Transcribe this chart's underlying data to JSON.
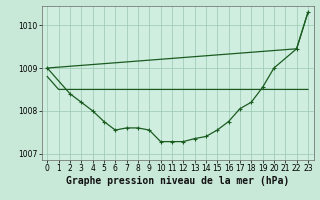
{
  "title": "Graphe pression niveau de la mer (hPa)",
  "background_color": "#c8e8d8",
  "plot_bg_color": "#d0eee0",
  "grid_color": "#98c8b0",
  "line_color": "#1a5c20",
  "hours": [
    0,
    1,
    2,
    3,
    4,
    5,
    6,
    7,
    8,
    9,
    10,
    11,
    12,
    13,
    14,
    15,
    16,
    17,
    18,
    19,
    20,
    21,
    22,
    23
  ],
  "line_diag": [
    1009.0,
    null,
    null,
    null,
    null,
    null,
    null,
    null,
    null,
    null,
    null,
    null,
    null,
    null,
    null,
    null,
    null,
    null,
    null,
    null,
    null,
    null,
    1009.45,
    1010.3
  ],
  "line_flat": [
    1008.8,
    1008.5,
    1008.5,
    1008.5,
    1008.5,
    1008.5,
    1008.5,
    1008.5,
    1008.5,
    1008.5,
    1008.5,
    1008.5,
    1008.5,
    1008.5,
    1008.5,
    1008.5,
    1008.5,
    1008.5,
    1008.5,
    1008.5,
    1008.5,
    1008.5,
    1008.5,
    1008.5
  ],
  "line_ushaped": [
    1009.0,
    null,
    1008.4,
    1008.2,
    1008.0,
    1007.75,
    1007.55,
    1007.6,
    1007.6,
    1007.55,
    1007.28,
    1007.28,
    1007.28,
    1007.35,
    1007.4,
    1007.55,
    1007.75,
    1008.05,
    1008.2,
    1008.55,
    1009.0,
    null,
    1009.45,
    1010.3
  ],
  "ylim": [
    1006.85,
    1010.45
  ],
  "yticks": [
    1007,
    1008,
    1009,
    1010
  ],
  "xticks": [
    0,
    1,
    2,
    3,
    4,
    5,
    6,
    7,
    8,
    9,
    10,
    11,
    12,
    13,
    14,
    15,
    16,
    17,
    18,
    19,
    20,
    21,
    22,
    23
  ],
  "title_fontsize": 7,
  "tick_fontsize": 5.5
}
